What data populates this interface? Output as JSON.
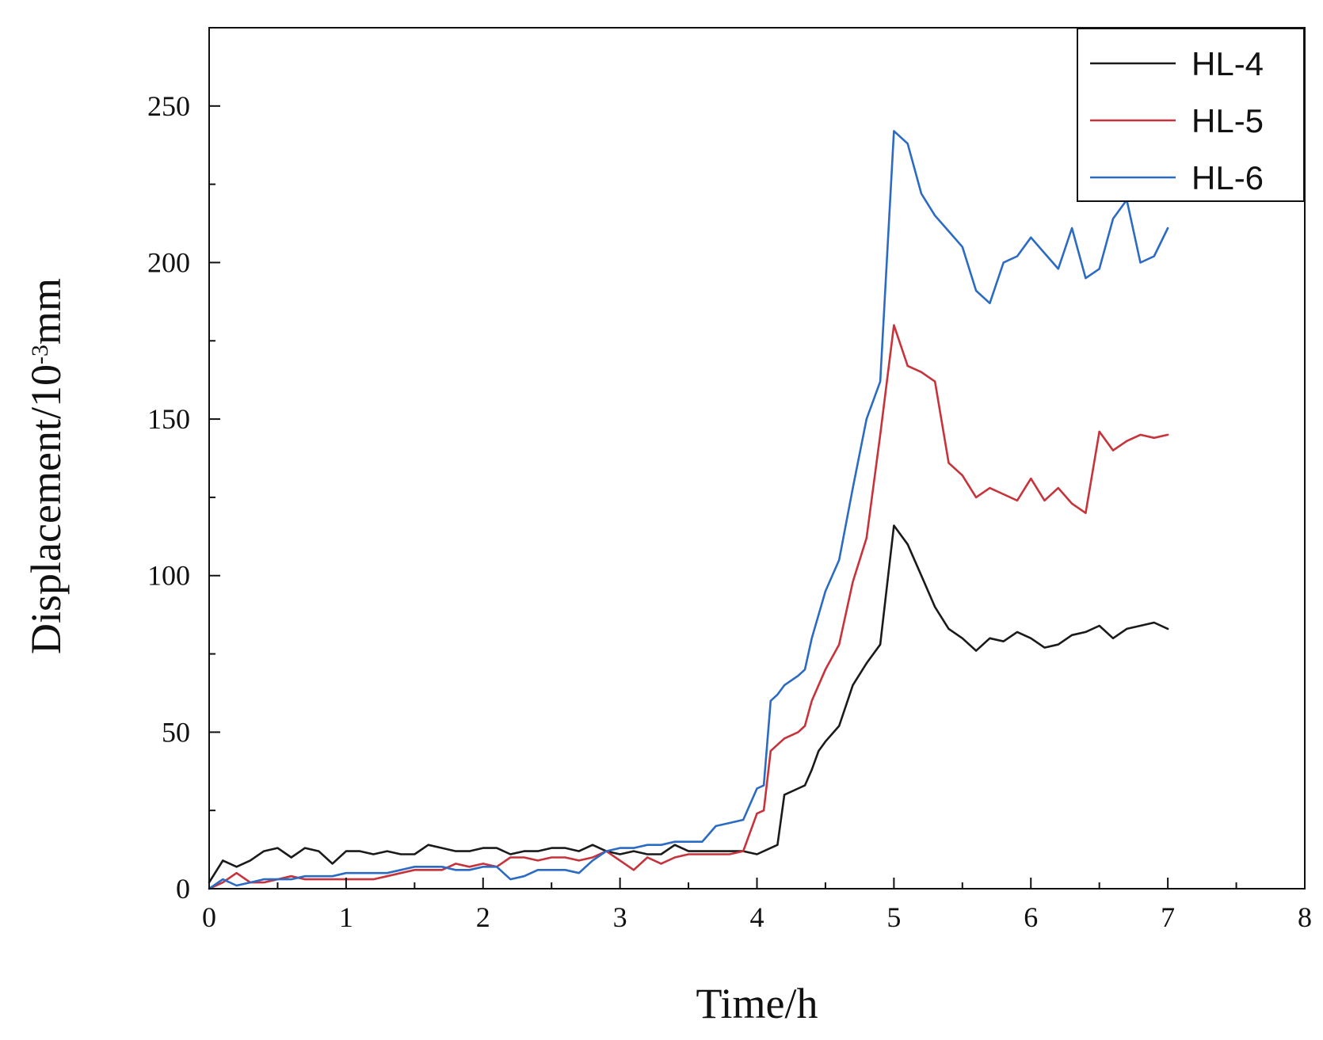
{
  "chart_data": {
    "type": "line",
    "title": "",
    "xlabel": "Time/h",
    "ylabel": {
      "main": "Displacement/10",
      "exponent": "-3",
      "unit": "mm"
    },
    "xlim": [
      0,
      8
    ],
    "ylim": [
      0,
      275
    ],
    "xticks": [
      0,
      1,
      2,
      3,
      4,
      5,
      6,
      7,
      8
    ],
    "yticks": [
      0,
      50,
      100,
      150,
      200,
      250
    ],
    "grid": false,
    "legend_position": "top-right",
    "series": [
      {
        "name": "HL-4",
        "color": "#1a1a1a",
        "x": [
          0,
          0.1,
          0.2,
          0.3,
          0.4,
          0.5,
          0.6,
          0.7,
          0.8,
          0.9,
          1.0,
          1.1,
          1.2,
          1.3,
          1.4,
          1.5,
          1.6,
          1.7,
          1.8,
          1.9,
          2.0,
          2.1,
          2.2,
          2.3,
          2.4,
          2.5,
          2.6,
          2.7,
          2.8,
          2.9,
          3.0,
          3.1,
          3.2,
          3.3,
          3.4,
          3.5,
          3.6,
          3.7,
          3.8,
          3.9,
          4.0,
          4.1,
          4.15,
          4.2,
          4.3,
          4.35,
          4.4,
          4.45,
          4.5,
          4.6,
          4.7,
          4.8,
          4.9,
          5.0,
          5.1,
          5.2,
          5.3,
          5.4,
          5.5,
          5.6,
          5.7,
          5.8,
          5.9,
          6.0,
          6.1,
          6.2,
          6.3,
          6.4,
          6.5,
          6.6,
          6.7,
          6.8,
          6.9,
          7.0
        ],
        "y": [
          2,
          9,
          7,
          9,
          12,
          13,
          10,
          13,
          12,
          8,
          12,
          12,
          11,
          12,
          11,
          11,
          14,
          13,
          12,
          12,
          13,
          13,
          11,
          12,
          12,
          13,
          13,
          12,
          14,
          12,
          11,
          12,
          11,
          11,
          14,
          12,
          12,
          12,
          12,
          12,
          11,
          13,
          14,
          30,
          32,
          33,
          38,
          44,
          47,
          52,
          65,
          72,
          78,
          116,
          110,
          100,
          90,
          83,
          80,
          76,
          80,
          79,
          82,
          80,
          77,
          78,
          81,
          82,
          84,
          80,
          83,
          84,
          85,
          83
        ]
      },
      {
        "name": "HL-5",
        "color": "#c8323a",
        "x": [
          0,
          0.1,
          0.2,
          0.3,
          0.4,
          0.5,
          0.6,
          0.7,
          0.8,
          0.9,
          1.0,
          1.1,
          1.2,
          1.3,
          1.4,
          1.5,
          1.6,
          1.7,
          1.8,
          1.9,
          2.0,
          2.1,
          2.2,
          2.3,
          2.4,
          2.5,
          2.6,
          2.7,
          2.8,
          2.9,
          3.0,
          3.1,
          3.2,
          3.3,
          3.4,
          3.5,
          3.6,
          3.7,
          3.8,
          3.9,
          4.0,
          4.05,
          4.1,
          4.15,
          4.2,
          4.3,
          4.35,
          4.4,
          4.5,
          4.6,
          4.7,
          4.8,
          4.9,
          5.0,
          5.1,
          5.2,
          5.3,
          5.4,
          5.5,
          5.6,
          5.7,
          5.8,
          5.9,
          6.0,
          6.1,
          6.2,
          6.3,
          6.4,
          6.5,
          6.6,
          6.7,
          6.8,
          6.9,
          7.0
        ],
        "y": [
          0,
          2,
          5,
          2,
          2,
          3,
          4,
          3,
          3,
          3,
          3,
          3,
          3,
          4,
          5,
          6,
          6,
          6,
          8,
          7,
          8,
          7,
          10,
          10,
          9,
          10,
          10,
          9,
          10,
          12,
          9,
          6,
          10,
          8,
          10,
          11,
          11,
          11,
          11,
          12,
          24,
          25,
          44,
          46,
          48,
          50,
          52,
          60,
          70,
          78,
          98,
          112,
          145,
          180,
          167,
          165,
          162,
          136,
          132,
          125,
          128,
          126,
          124,
          131,
          124,
          128,
          123,
          120,
          146,
          140,
          143,
          145,
          144,
          145
        ]
      },
      {
        "name": "HL-6",
        "color": "#2b6bc4",
        "x": [
          0,
          0.1,
          0.2,
          0.3,
          0.4,
          0.5,
          0.6,
          0.7,
          0.8,
          0.9,
          1.0,
          1.1,
          1.2,
          1.3,
          1.4,
          1.5,
          1.6,
          1.7,
          1.8,
          1.9,
          2.0,
          2.1,
          2.2,
          2.3,
          2.4,
          2.5,
          2.6,
          2.7,
          2.8,
          2.9,
          3.0,
          3.1,
          3.2,
          3.3,
          3.4,
          3.5,
          3.6,
          3.7,
          3.8,
          3.9,
          4.0,
          4.05,
          4.1,
          4.15,
          4.2,
          4.3,
          4.35,
          4.4,
          4.5,
          4.6,
          4.7,
          4.8,
          4.9,
          5.0,
          5.1,
          5.2,
          5.3,
          5.4,
          5.5,
          5.6,
          5.7,
          5.8,
          5.9,
          6.0,
          6.1,
          6.2,
          6.3,
          6.4,
          6.5,
          6.6,
          6.7,
          6.8,
          6.9,
          7.0
        ],
        "y": [
          0,
          3,
          1,
          2,
          3,
          3,
          3,
          4,
          4,
          4,
          5,
          5,
          5,
          5,
          6,
          7,
          7,
          7,
          6,
          6,
          7,
          7,
          3,
          4,
          6,
          6,
          6,
          5,
          9,
          12,
          13,
          13,
          14,
          14,
          15,
          15,
          15,
          20,
          21,
          22,
          32,
          33,
          60,
          62,
          65,
          68,
          70,
          80,
          95,
          105,
          128,
          150,
          162,
          242,
          238,
          222,
          215,
          210,
          205,
          191,
          187,
          200,
          202,
          208,
          203,
          198,
          211,
          195,
          198,
          214,
          220,
          200,
          202,
          211
        ]
      }
    ]
  }
}
